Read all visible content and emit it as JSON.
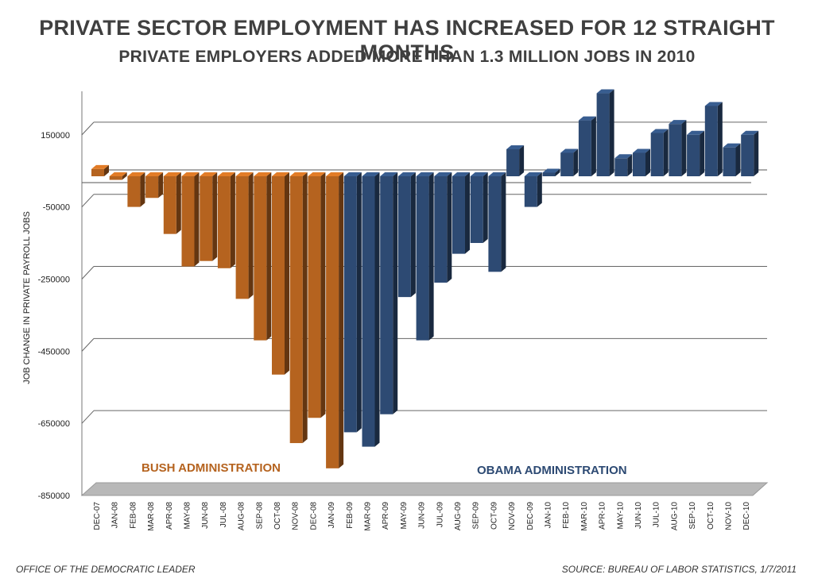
{
  "header": {
    "title": "PRIVATE SECTOR EMPLOYMENT HAS INCREASED FOR 12 STRAIGHT MONTHS",
    "subtitle": "PRIVATE EMPLOYERS ADDED MORE THAN 1.3 MILLION JOBS IN 2010"
  },
  "footer": {
    "left": "OFFICE OF THE DEMOCRATIC LEADER",
    "right": "SOURCE: BUREAU OF LABOR STATISTICS, 1/7/2011"
  },
  "chart_data": {
    "type": "bar",
    "ylabel": "JOB CHANGE IN PRIVATE PAYROLL JOBS",
    "ylim": [
      -850000,
      230000
    ],
    "yticks": [
      150000,
      -50000,
      -250000,
      -450000,
      -650000,
      -850000
    ],
    "ytick_labels": [
      "150000",
      "-50000",
      "-250000",
      "-450000",
      "-650000",
      "-850000"
    ],
    "categories": [
      "DEC-07",
      "JAN-08",
      "FEB-08",
      "MAR-08",
      "APR-08",
      "MAY-08",
      "JUN-08",
      "JUL-08",
      "AUG-08",
      "SEP-08",
      "OCT-08",
      "NOV-08",
      "DEC-08",
      "JAN-09",
      "FEB-09",
      "MAR-09",
      "APR-09",
      "MAY-09",
      "JUN-09",
      "JUL-09",
      "AUG-09",
      "SEP-09",
      "OCT-09",
      "NOV-09",
      "DEC-09",
      "JAN-10",
      "FEB-10",
      "MAR-10",
      "APR-10",
      "MAY-10",
      "JUN-10",
      "JUL-10",
      "AUG-10",
      "SEP-10",
      "OCT-10",
      "NOV-10",
      "DEC-10"
    ],
    "values": [
      20000,
      -10000,
      -85000,
      -60000,
      -160000,
      -250000,
      -235000,
      -255000,
      -340000,
      -455000,
      -550000,
      -740000,
      -670000,
      -810000,
      -710000,
      -750000,
      -660000,
      -335000,
      -455000,
      -295000,
      -215000,
      -185000,
      -265000,
      75000,
      -85000,
      10000,
      65000,
      155000,
      230000,
      50000,
      65000,
      120000,
      145000,
      115000,
      195000,
      80000,
      115000
    ],
    "series_groups": [
      {
        "name": "BUSH ADMINISTRATION",
        "range": [
          0,
          13
        ],
        "color": "#b5631f"
      },
      {
        "name": "OBAMA ADMINISTRATION",
        "range": [
          14,
          36
        ],
        "color": "#2d4a73"
      }
    ],
    "grid": true
  }
}
